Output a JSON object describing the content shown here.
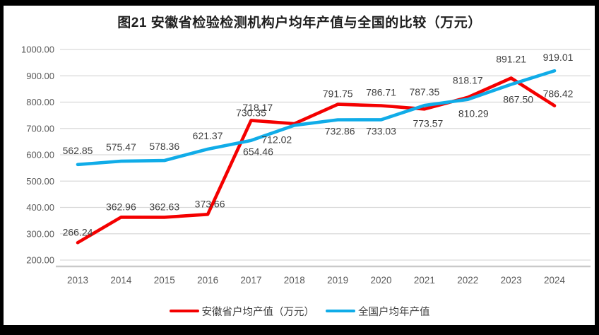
{
  "page": {
    "frame_color": "#000000",
    "background_color": "#ffffff"
  },
  "chart_data": {
    "type": "line",
    "title": "图21 安徽省检验检测机构户均年产值与全国的比较（万元）",
    "x": [
      "2013",
      "2014",
      "2015",
      "2016",
      "2017",
      "2018",
      "2019",
      "2020",
      "2021",
      "2022",
      "2023",
      "2024"
    ],
    "series": [
      {
        "name": "安徽省户均产值（万元）",
        "color": "#F40000",
        "values": [
          266.24,
          362.96,
          362.63,
          373.66,
          730.35,
          718.17,
          791.75,
          786.71,
          773.57,
          818.17,
          891.21,
          786.42
        ],
        "label_positions": [
          "above",
          "above",
          "above",
          "above",
          "above",
          "above",
          "above",
          "above",
          "below",
          "above",
          "above",
          "above"
        ],
        "label_offsets": [
          [
            0,
            0
          ],
          [
            0,
            0
          ],
          [
            0,
            0
          ],
          [
            3,
            0
          ],
          [
            0,
            4
          ],
          [
            -52,
            -8
          ],
          [
            0,
            0
          ],
          [
            0,
            -4
          ],
          [
            5,
            4
          ],
          [
            0,
            -9
          ],
          [
            0,
            -12
          ],
          [
            5,
            -2
          ]
        ]
      },
      {
        "name": "全国户均年产值",
        "color": "#10ACE8",
        "values": [
          562.85,
          575.47,
          578.36,
          621.37,
          654.46,
          712.02,
          732.86,
          733.03,
          787.35,
          810.29,
          867.5,
          919.01
        ],
        "label_positions": [
          "above",
          "above",
          "above",
          "above",
          "below",
          "below",
          "below",
          "below",
          "above",
          "below",
          "below",
          "above"
        ],
        "label_offsets": [
          [
            0,
            -5
          ],
          [
            0,
            -5
          ],
          [
            0,
            -5
          ],
          [
            0,
            -4
          ],
          [
            10,
            0
          ],
          [
            -25,
            4
          ],
          [
            3,
            0
          ],
          [
            0,
            0
          ],
          [
            0,
            -4
          ],
          [
            8,
            4
          ],
          [
            10,
            5
          ],
          [
            5,
            -4
          ]
        ]
      }
    ],
    "ylim": [
      200,
      1000
    ],
    "yticks": [
      1000,
      900,
      800,
      700,
      600,
      500,
      400,
      300,
      200
    ],
    "ytick_labels": [
      "1000.00",
      "900.00",
      "800.00",
      "700.00",
      "600.00",
      "500.00",
      "400.00",
      "300.00",
      "200.00"
    ],
    "grid": true,
    "gridline_color": "#D9D9D9",
    "axis_line_color": "#C9C9C9",
    "tick_label_color": "#595959",
    "data_label_color": "#3f3f3f",
    "legend_position": "bottom"
  }
}
